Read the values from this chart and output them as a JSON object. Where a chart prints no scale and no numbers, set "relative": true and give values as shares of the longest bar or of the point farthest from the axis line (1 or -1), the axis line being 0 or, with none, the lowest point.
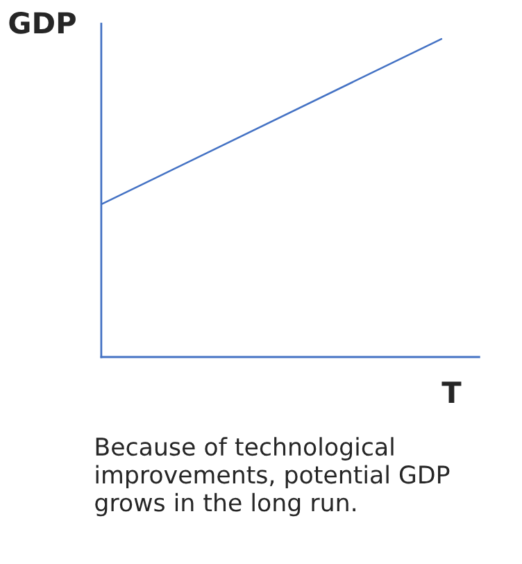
{
  "chart_data": {
    "type": "line",
    "relative": true,
    "xlabel": "T",
    "ylabel": "GDP",
    "categories": [
      null,
      null
    ],
    "series": [
      {
        "color": "#4472c4",
        "values": [
          0.48,
          1.0
        ]
      }
    ],
    "annotations": [
      "Because of technological improvements, potential GDP grows in the long run."
    ]
  }
}
